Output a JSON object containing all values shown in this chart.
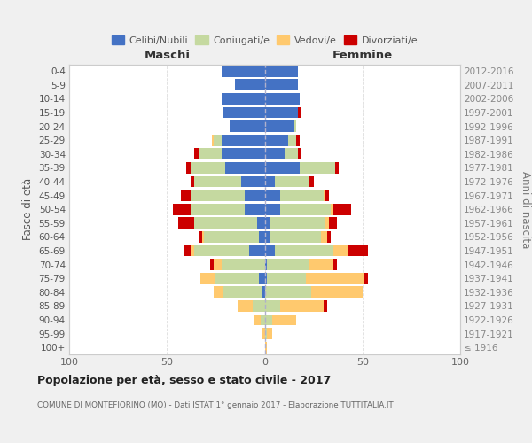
{
  "age_groups": [
    "100+",
    "95-99",
    "90-94",
    "85-89",
    "80-84",
    "75-79",
    "70-74",
    "65-69",
    "60-64",
    "55-59",
    "50-54",
    "45-49",
    "40-44",
    "35-39",
    "30-34",
    "25-29",
    "20-24",
    "15-19",
    "10-14",
    "5-9",
    "0-4"
  ],
  "birth_years": [
    "≤ 1916",
    "1917-1921",
    "1922-1926",
    "1927-1931",
    "1932-1936",
    "1937-1941",
    "1942-1946",
    "1947-1951",
    "1952-1956",
    "1957-1961",
    "1962-1966",
    "1967-1971",
    "1972-1976",
    "1977-1981",
    "1982-1986",
    "1987-1991",
    "1992-1996",
    "1997-2001",
    "2002-2006",
    "2007-2011",
    "2012-2016"
  ],
  "males": {
    "celibi": [
      0,
      0,
      0,
      0,
      1,
      3,
      0,
      8,
      3,
      4,
      10,
      10,
      12,
      20,
      22,
      22,
      18,
      21,
      22,
      15,
      22
    ],
    "coniugati": [
      0,
      0,
      2,
      6,
      20,
      22,
      22,
      28,
      28,
      32,
      28,
      28,
      24,
      18,
      12,
      4,
      0,
      0,
      0,
      0,
      0
    ],
    "vedovi": [
      0,
      1,
      3,
      8,
      5,
      8,
      4,
      2,
      1,
      0,
      0,
      0,
      0,
      0,
      0,
      1,
      0,
      0,
      0,
      0,
      0
    ],
    "divorziati": [
      0,
      0,
      0,
      0,
      0,
      0,
      2,
      3,
      2,
      8,
      9,
      5,
      2,
      2,
      2,
      0,
      0,
      0,
      0,
      0,
      0
    ]
  },
  "females": {
    "nubili": [
      0,
      0,
      0,
      0,
      0,
      1,
      1,
      5,
      3,
      3,
      8,
      8,
      5,
      18,
      10,
      12,
      15,
      17,
      18,
      17,
      17
    ],
    "coniugate": [
      0,
      1,
      4,
      8,
      24,
      20,
      22,
      30,
      26,
      28,
      26,
      22,
      18,
      18,
      7,
      4,
      1,
      0,
      0,
      0,
      0
    ],
    "vedove": [
      1,
      3,
      12,
      22,
      26,
      30,
      12,
      8,
      3,
      2,
      1,
      1,
      0,
      0,
      0,
      0,
      0,
      0,
      0,
      0,
      0
    ],
    "divorziate": [
      0,
      0,
      0,
      2,
      0,
      2,
      2,
      10,
      2,
      4,
      9,
      2,
      2,
      2,
      2,
      2,
      0,
      2,
      0,
      0,
      0
    ]
  },
  "colors": {
    "celibi": "#4472C4",
    "coniugati": "#c5d9a0",
    "vedovi": "#ffc96e",
    "divorziati": "#cc0000"
  },
  "xlim": 100,
  "title": "Popolazione per età, sesso e stato civile - 2017",
  "subtitle": "COMUNE DI MONTEFIORINO (MO) - Dati ISTAT 1° gennaio 2017 - Elaborazione TUTTITALIA.IT",
  "ylabel_left": "Fasce di età",
  "ylabel_right": "Anni di nascita",
  "xlabel_left": "Maschi",
  "xlabel_right": "Femmine",
  "bg_color": "#f0f0f0",
  "plot_bg": "#ffffff",
  "legend_labels": [
    "Celibi/Nubili",
    "Coniugati/e",
    "Vedovi/e",
    "Divorziati/e"
  ]
}
